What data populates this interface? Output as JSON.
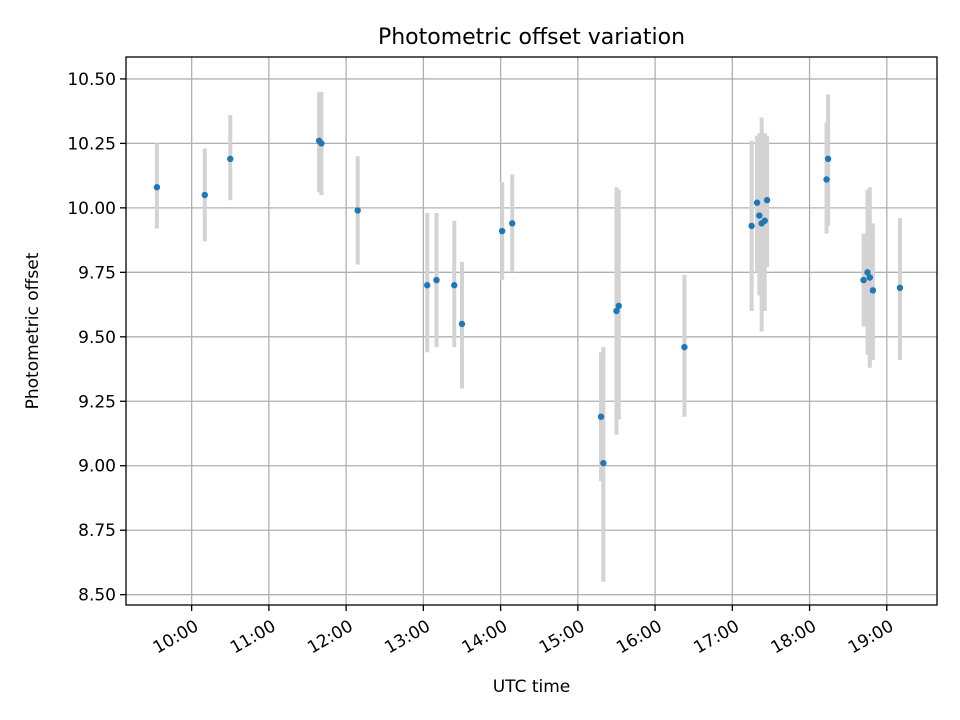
{
  "chart_data": {
    "type": "scatter",
    "title": "Photometric offset variation",
    "xlabel": "UTC time",
    "ylabel": "Photometric offset",
    "x_unit": "hours UTC",
    "xlim": [
      9.15,
      19.65
    ],
    "ylim": [
      8.46,
      10.585
    ],
    "x_ticks": [
      {
        "value": 10,
        "label": "10:00"
      },
      {
        "value": 11,
        "label": "11:00"
      },
      {
        "value": 12,
        "label": "12:00"
      },
      {
        "value": 13,
        "label": "13:00"
      },
      {
        "value": 14,
        "label": "14:00"
      },
      {
        "value": 15,
        "label": "15:00"
      },
      {
        "value": 16,
        "label": "16:00"
      },
      {
        "value": 17,
        "label": "17:00"
      },
      {
        "value": 18,
        "label": "18:00"
      },
      {
        "value": 19,
        "label": "19:00"
      }
    ],
    "y_ticks": [
      {
        "value": 8.5,
        "label": "8.50"
      },
      {
        "value": 8.75,
        "label": "8.75"
      },
      {
        "value": 9.0,
        "label": "9.00"
      },
      {
        "value": 9.25,
        "label": "9.25"
      },
      {
        "value": 9.5,
        "label": "9.50"
      },
      {
        "value": 9.75,
        "label": "9.75"
      },
      {
        "value": 10.0,
        "label": "10.00"
      },
      {
        "value": 10.25,
        "label": "10.25"
      },
      {
        "value": 10.5,
        "label": "10.50"
      }
    ],
    "grid": true,
    "point_color": "#1f77b4",
    "errorbar_color": "#d3d3d3",
    "points": [
      {
        "x": 9.55,
        "y": 10.08,
        "lo": 9.92,
        "hi": 10.25
      },
      {
        "x": 10.17,
        "y": 10.05,
        "lo": 9.87,
        "hi": 10.23
      },
      {
        "x": 10.5,
        "y": 10.19,
        "lo": 10.03,
        "hi": 10.36
      },
      {
        "x": 11.65,
        "y": 10.26,
        "lo": 10.06,
        "hi": 10.45
      },
      {
        "x": 11.68,
        "y": 10.25,
        "lo": 10.05,
        "hi": 10.45
      },
      {
        "x": 12.15,
        "y": 9.99,
        "lo": 9.78,
        "hi": 10.2
      },
      {
        "x": 13.05,
        "y": 9.7,
        "lo": 9.44,
        "hi": 9.98
      },
      {
        "x": 13.17,
        "y": 9.72,
        "lo": 9.46,
        "hi": 9.98
      },
      {
        "x": 13.4,
        "y": 9.7,
        "lo": 9.46,
        "hi": 9.95
      },
      {
        "x": 13.5,
        "y": 9.55,
        "lo": 9.3,
        "hi": 9.79
      },
      {
        "x": 14.02,
        "y": 9.91,
        "lo": 9.72,
        "hi": 10.1
      },
      {
        "x": 14.15,
        "y": 9.94,
        "lo": 9.75,
        "hi": 10.13
      },
      {
        "x": 15.3,
        "y": 9.19,
        "lo": 8.94,
        "hi": 9.44
      },
      {
        "x": 15.33,
        "y": 9.01,
        "lo": 8.55,
        "hi": 9.46
      },
      {
        "x": 15.5,
        "y": 9.6,
        "lo": 9.12,
        "hi": 10.08
      },
      {
        "x": 15.53,
        "y": 9.62,
        "lo": 9.18,
        "hi": 10.07
      },
      {
        "x": 16.38,
        "y": 9.46,
        "lo": 9.19,
        "hi": 9.74
      },
      {
        "x": 17.25,
        "y": 9.93,
        "lo": 9.6,
        "hi": 10.26
      },
      {
        "x": 17.32,
        "y": 10.02,
        "lo": 9.75,
        "hi": 10.28
      },
      {
        "x": 17.35,
        "y": 9.97,
        "lo": 9.66,
        "hi": 10.29
      },
      {
        "x": 17.38,
        "y": 9.94,
        "lo": 9.52,
        "hi": 10.35
      },
      {
        "x": 17.42,
        "y": 9.95,
        "lo": 9.6,
        "hi": 10.29
      },
      {
        "x": 17.45,
        "y": 10.03,
        "lo": 9.77,
        "hi": 10.28
      },
      {
        "x": 18.22,
        "y": 10.11,
        "lo": 9.9,
        "hi": 10.33
      },
      {
        "x": 18.24,
        "y": 10.19,
        "lo": 9.93,
        "hi": 10.44
      },
      {
        "x": 18.7,
        "y": 9.72,
        "lo": 9.54,
        "hi": 9.9
      },
      {
        "x": 18.75,
        "y": 9.75,
        "lo": 9.43,
        "hi": 10.07
      },
      {
        "x": 18.78,
        "y": 9.73,
        "lo": 9.38,
        "hi": 10.08
      },
      {
        "x": 18.82,
        "y": 9.68,
        "lo": 9.41,
        "hi": 9.94
      },
      {
        "x": 19.17,
        "y": 9.69,
        "lo": 9.41,
        "hi": 9.96
      }
    ]
  }
}
